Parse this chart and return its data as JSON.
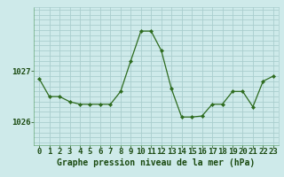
{
  "hours": [
    0,
    1,
    2,
    3,
    4,
    5,
    6,
    7,
    8,
    9,
    10,
    11,
    12,
    13,
    14,
    15,
    16,
    17,
    18,
    19,
    20,
    21,
    22,
    23
  ],
  "pressure": [
    1026.85,
    1026.5,
    1026.5,
    1026.4,
    1026.35,
    1026.35,
    1026.35,
    1026.35,
    1026.6,
    1027.2,
    1027.78,
    1027.78,
    1027.4,
    1026.65,
    1026.1,
    1026.1,
    1026.12,
    1026.35,
    1026.35,
    1026.6,
    1026.6,
    1026.3,
    1026.8,
    1026.9
  ],
  "line_color": "#2d6b1e",
  "marker_color": "#2d6b1e",
  "bg_color": "#ceeaea",
  "grid_color": "#aacece",
  "axis_color": "#1a4a10",
  "tick_color": "#1a4a10",
  "xlabel": "Graphe pression niveau de la mer (hPa)",
  "yticks": [
    1026,
    1027
  ],
  "ylim": [
    1025.55,
    1028.25
  ],
  "xlim": [
    -0.5,
    23.5
  ],
  "font_size_xlabel": 7,
  "font_size_tick": 6.5
}
